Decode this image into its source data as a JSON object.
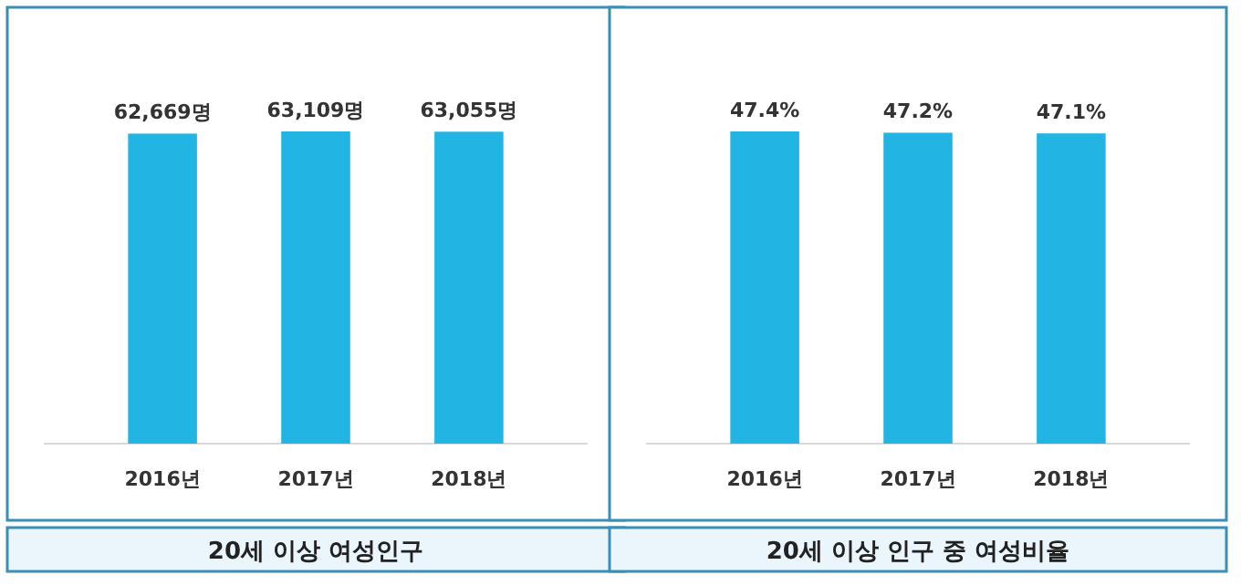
{
  "chart_data": [
    {
      "type": "bar",
      "title": "20세 이상 여성인구",
      "categories": [
        "2016년",
        "2017년",
        "2018년"
      ],
      "values": [
        62669,
        63109,
        63055
      ],
      "value_labels": [
        "62,669명",
        "63,109명",
        "63,055명"
      ],
      "color": "#22b5e3"
    },
    {
      "type": "bar",
      "title": "20세 이상 인구 중 여성비율",
      "categories": [
        "2016년",
        "2017년",
        "2018년"
      ],
      "values": [
        47.4,
        47.2,
        47.1
      ],
      "value_labels": [
        "47.4%",
        "47.2%",
        "47.1%"
      ],
      "color": "#22b5e3"
    }
  ]
}
